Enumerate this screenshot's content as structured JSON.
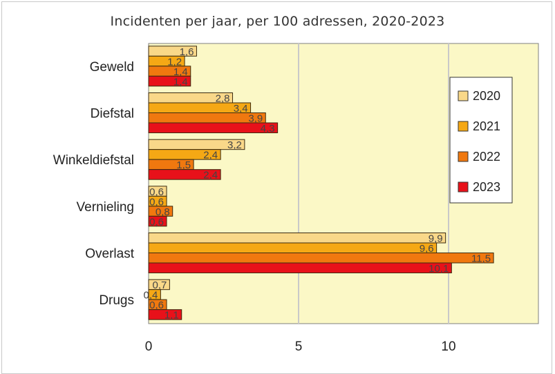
{
  "chart_data": {
    "type": "bar",
    "orientation": "horizontal",
    "title": "Incidenten per jaar, per 100 adressen, 2020-2023",
    "categories": [
      "Geweld",
      "Diefstal",
      "Winkeldiefstal",
      "Vernieling",
      "Overlast",
      "Drugs"
    ],
    "series": [
      {
        "name": "2020",
        "color": "#f9d889",
        "values": [
          1.6,
          2.8,
          3.2,
          0.6,
          9.9,
          0.7
        ]
      },
      {
        "name": "2021",
        "color": "#f5a815",
        "values": [
          1.2,
          3.4,
          2.4,
          0.6,
          9.6,
          0.4
        ]
      },
      {
        "name": "2022",
        "color": "#f0780f",
        "values": [
          1.4,
          3.9,
          1.5,
          0.8,
          11.5,
          0.6
        ]
      },
      {
        "name": "2023",
        "color": "#e8111a",
        "values": [
          1.4,
          4.3,
          2.4,
          0.6,
          10.1,
          1.1
        ]
      }
    ],
    "xlim": [
      0,
      12.6
    ],
    "xticks": [
      0,
      5,
      10
    ],
    "grid": true,
    "legend_position": "right",
    "plot_background": "#fbf8c6"
  }
}
